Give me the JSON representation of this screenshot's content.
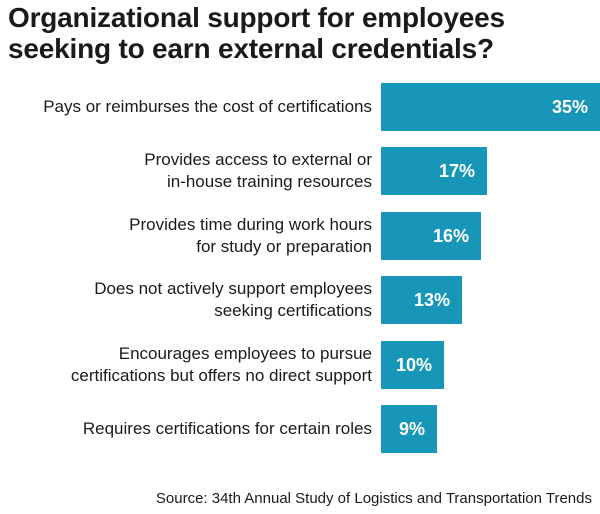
{
  "title_lines": [
    "Organizational support for employees",
    "seeking to earn external credentials?"
  ],
  "source": "Source: 34th Annual Study of Logistics and Transportation Trends",
  "colors": {
    "bar": "#1796b8",
    "text": "#1a1a1a",
    "value_text": "#ffffff"
  },
  "chart_data": {
    "type": "bar",
    "orientation": "horizontal",
    "categories": [
      [
        "Pays or reimburses the cost of certifications"
      ],
      [
        "Provides access to external or",
        "in-house training resources"
      ],
      [
        "Provides time during work hours",
        "for study or preparation"
      ],
      [
        "Does not actively support employees",
        "seeking certifications"
      ],
      [
        "Encourages employees to pursue",
        "certifications but offers no direct support"
      ],
      [
        "Requires certifications for certain roles"
      ]
    ],
    "values": [
      35,
      17,
      16,
      13,
      10,
      9
    ],
    "value_labels": [
      "35%",
      "17%",
      "16%",
      "13%",
      "10%",
      "9%"
    ],
    "unit": "%",
    "grid": false,
    "legend": "none"
  }
}
